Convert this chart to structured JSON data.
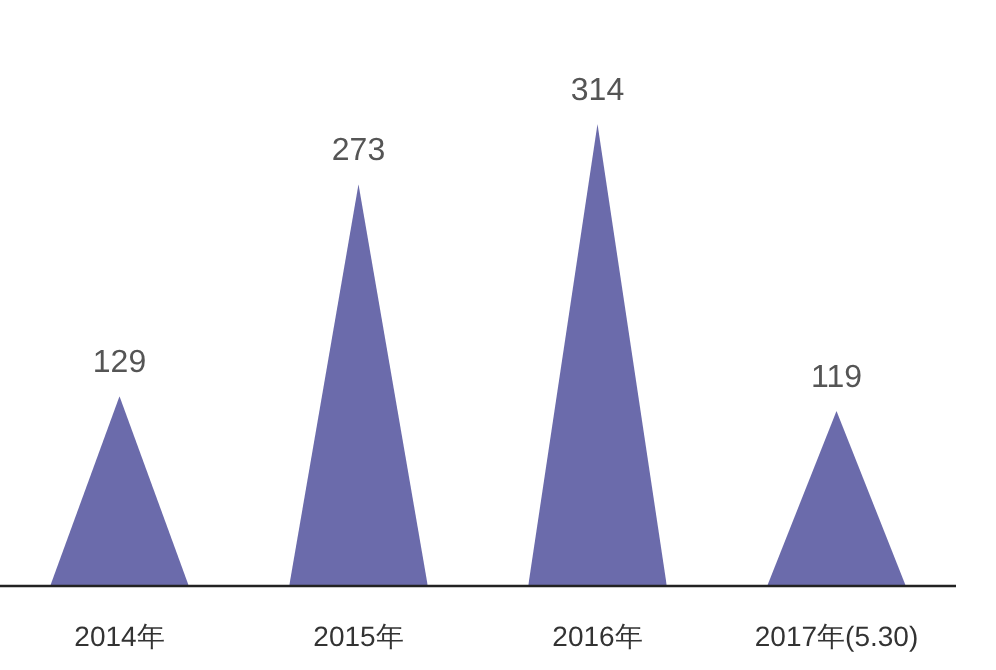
{
  "chart_data": {
    "type": "bar",
    "categories": [
      "2014年",
      "2015年",
      "2016年",
      "2017年(5.30)"
    ],
    "values": [
      129,
      273,
      314,
      119
    ],
    "color": "#6b6bab",
    "data_labels": true
  }
}
